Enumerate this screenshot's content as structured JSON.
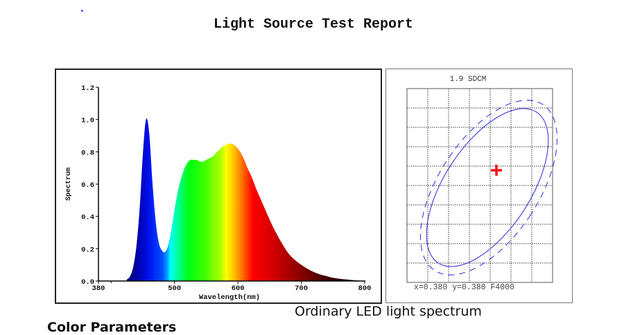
{
  "report": {
    "title": "Light Source Test Report",
    "caption": "Ordinary LED light spectrum",
    "next_section_heading": "Color Parameters"
  },
  "sdcm_panel": {
    "title": "1.9 SDCM",
    "footer": "x=0.380 y=0.380 F4000",
    "grid_columns": 7,
    "grid_rows": 10,
    "marker_color": "#ff0000",
    "ellipse_color": "#3b3bdb"
  },
  "chart_data": [
    {
      "type": "area",
      "title": "",
      "xlabel": "Wavelength(nm)",
      "ylabel": "Spectrum",
      "xlim": [
        380,
        800
      ],
      "ylim": [
        0,
        1.2
      ],
      "x_ticks": [
        "380",
        "500",
        "600",
        "700",
        "800"
      ],
      "y_ticks": [
        "0.0",
        "0.2",
        "0.4",
        "0.6",
        "0.8",
        "1.0",
        "1.2"
      ],
      "grid": false,
      "fill": "visible-spectrum color gradient",
      "x": [
        380,
        420,
        425,
        430,
        435,
        440,
        445,
        450,
        455,
        460,
        465,
        470,
        475,
        480,
        485,
        490,
        495,
        500,
        505,
        510,
        515,
        520,
        525,
        530,
        535,
        540,
        545,
        550,
        555,
        560,
        565,
        570,
        575,
        580,
        585,
        590,
        595,
        600,
        605,
        610,
        615,
        620,
        625,
        630,
        640,
        650,
        660,
        670,
        680,
        690,
        700,
        710,
        720,
        730,
        740,
        750,
        760,
        770,
        780,
        790,
        800
      ],
      "values": [
        0.0,
        0.0,
        0.01,
        0.03,
        0.09,
        0.22,
        0.45,
        0.78,
        1.0,
        0.92,
        0.62,
        0.38,
        0.24,
        0.19,
        0.18,
        0.22,
        0.32,
        0.44,
        0.55,
        0.63,
        0.69,
        0.73,
        0.75,
        0.75,
        0.75,
        0.74,
        0.74,
        0.75,
        0.76,
        0.77,
        0.79,
        0.81,
        0.83,
        0.84,
        0.85,
        0.85,
        0.84,
        0.82,
        0.79,
        0.75,
        0.7,
        0.66,
        0.61,
        0.56,
        0.47,
        0.38,
        0.3,
        0.23,
        0.17,
        0.13,
        0.1,
        0.075,
        0.055,
        0.04,
        0.03,
        0.02,
        0.014,
        0.01,
        0.006,
        0.003,
        0.0
      ]
    },
    {
      "type": "scatter",
      "title": "1.9 SDCM",
      "annotation": "x=0.380 y=0.380 F4000",
      "points": [
        {
          "label": "measured chromaticity",
          "marker": "plus"
        }
      ],
      "ellipses": [
        "solid (inner)",
        "dashed (outer)"
      ],
      "grid": true
    }
  ]
}
